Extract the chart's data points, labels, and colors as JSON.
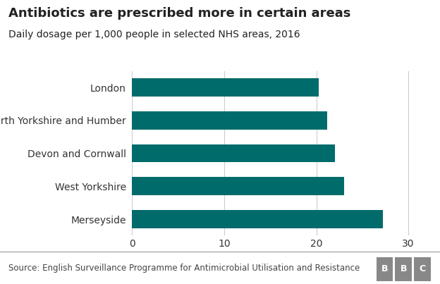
{
  "title": "Antibiotics are prescribed more in certain areas",
  "subtitle": "Daily dosage per 1,000 people in selected NHS areas, 2016",
  "categories": [
    "London",
    "North Yorkshire and Humber",
    "Devon and Cornwall",
    "West Yorkshire",
    "Merseyside"
  ],
  "values": [
    20.3,
    21.2,
    22.0,
    23.0,
    27.2
  ],
  "bar_color": "#006B6B",
  "xlim": [
    0,
    32
  ],
  "xticks": [
    0,
    10,
    20,
    30
  ],
  "source_text": "Source: English Surveillance Programme for Antimicrobial Utilisation and Resistance",
  "bbc_letters": [
    "B",
    "B",
    "C"
  ],
  "background_color": "#ffffff",
  "footer_bg": "#888888",
  "title_fontsize": 13,
  "subtitle_fontsize": 10,
  "tick_fontsize": 10,
  "label_fontsize": 10,
  "source_fontsize": 8.5,
  "bar_height": 0.55,
  "grid_color": "#cccccc",
  "text_color": "#222222",
  "source_color": "#444444"
}
